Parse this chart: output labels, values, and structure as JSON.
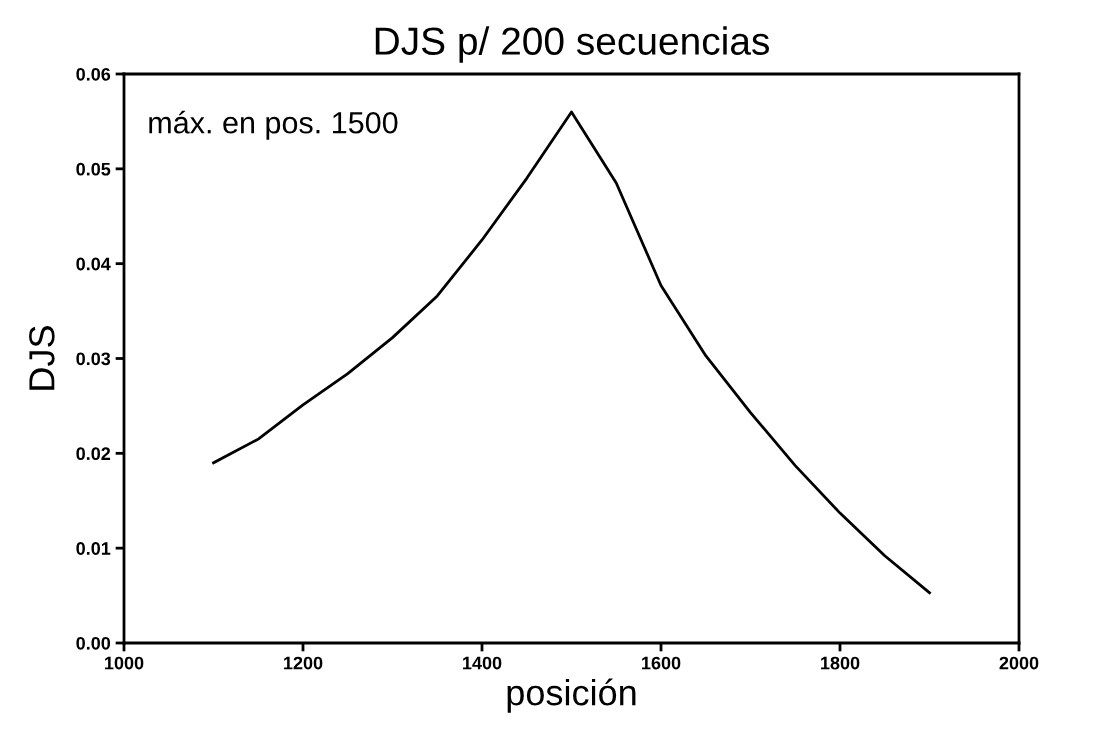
{
  "chart_data": {
    "type": "line",
    "title": "DJS p/ 200 secuencias",
    "xlabel": "posición",
    "ylabel": "DJS",
    "annotations": [
      "máx. en pos. 1500"
    ],
    "x": [
      1100,
      1150,
      1200,
      1250,
      1300,
      1350,
      1400,
      1450,
      1500,
      1550,
      1600,
      1650,
      1700,
      1750,
      1800,
      1850,
      1900
    ],
    "series": [
      {
        "color": "#000000",
        "values": [
          0.019,
          0.0215,
          0.0251,
          0.0284,
          0.0322,
          0.0366,
          0.0425,
          0.049,
          0.056,
          0.0485,
          0.0377,
          0.0303,
          0.0243,
          0.0187,
          0.0137,
          0.0092,
          0.0053
        ]
      }
    ],
    "xlim": [
      1000,
      2000
    ],
    "xticks": [
      1000,
      1200,
      1400,
      1600,
      1800,
      2000
    ],
    "ylim": [
      0,
      0.06
    ],
    "yticks": [
      {
        "value": 0,
        "label": "0.00"
      },
      {
        "value": 0.01,
        "label": "0.01"
      },
      {
        "value": 0.02,
        "label": "0.02"
      },
      {
        "value": 0.03,
        "label": "0.03"
      },
      {
        "value": 0.04,
        "label": "0.04"
      },
      {
        "value": 0.05,
        "label": "0.05"
      },
      {
        "value": 0.06,
        "label": "0.06"
      }
    ],
    "grid": false,
    "marker": "none",
    "line_style": "solid"
  }
}
